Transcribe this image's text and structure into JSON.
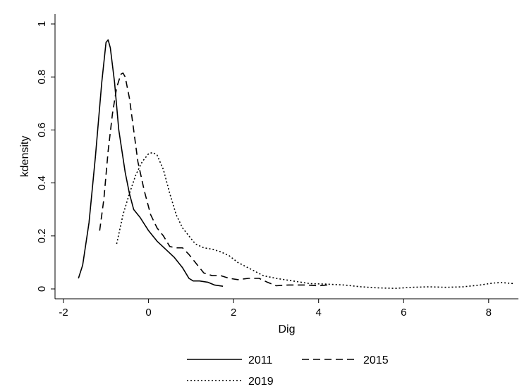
{
  "chart_data": {
    "type": "line",
    "xlabel": "Dig",
    "ylabel": "kdensity",
    "xlim": [
      -2.2,
      8.7
    ],
    "ylim": [
      0,
      1
    ],
    "xticks": [
      -2,
      0,
      2,
      4,
      6,
      8
    ],
    "yticks": [
      0,
      0.2,
      0.4,
      0.6,
      0.8,
      1
    ],
    "xtick_labels": [
      "-2",
      "0",
      "2",
      "4",
      "6",
      "8"
    ],
    "ytick_labels": [
      "0",
      "0.2",
      "0.4",
      "0.6",
      "0.8",
      "1"
    ],
    "legend_position": "bottom",
    "grid": false,
    "series": [
      {
        "name": "2011",
        "dash": "solid",
        "points": [
          [
            -1.65,
            0.04
          ],
          [
            -1.55,
            0.09
          ],
          [
            -1.4,
            0.25
          ],
          [
            -1.25,
            0.5
          ],
          [
            -1.1,
            0.78
          ],
          [
            -1.0,
            0.93
          ],
          [
            -0.95,
            0.94
          ],
          [
            -0.9,
            0.91
          ],
          [
            -0.8,
            0.78
          ],
          [
            -0.7,
            0.6
          ],
          [
            -0.55,
            0.44
          ],
          [
            -0.45,
            0.36
          ],
          [
            -0.35,
            0.3
          ],
          [
            -0.2,
            0.27
          ],
          [
            0.0,
            0.22
          ],
          [
            0.2,
            0.18
          ],
          [
            0.4,
            0.15
          ],
          [
            0.6,
            0.12
          ],
          [
            0.8,
            0.08
          ],
          [
            0.95,
            0.04
          ],
          [
            1.05,
            0.03
          ],
          [
            1.2,
            0.03
          ],
          [
            1.4,
            0.025
          ],
          [
            1.55,
            0.015
          ],
          [
            1.75,
            0.01
          ]
        ]
      },
      {
        "name": "2015",
        "dash": "dashed",
        "points": [
          [
            -1.15,
            0.22
          ],
          [
            -1.05,
            0.34
          ],
          [
            -0.95,
            0.52
          ],
          [
            -0.85,
            0.66
          ],
          [
            -0.75,
            0.76
          ],
          [
            -0.65,
            0.81
          ],
          [
            -0.6,
            0.815
          ],
          [
            -0.55,
            0.8
          ],
          [
            -0.45,
            0.72
          ],
          [
            -0.35,
            0.6
          ],
          [
            -0.25,
            0.48
          ],
          [
            -0.1,
            0.37
          ],
          [
            0.05,
            0.28
          ],
          [
            0.2,
            0.23
          ],
          [
            0.35,
            0.2
          ],
          [
            0.5,
            0.16
          ],
          [
            0.65,
            0.155
          ],
          [
            0.8,
            0.155
          ],
          [
            0.95,
            0.13
          ],
          [
            1.1,
            0.1
          ],
          [
            1.3,
            0.06
          ],
          [
            1.5,
            0.05
          ],
          [
            1.7,
            0.05
          ],
          [
            1.9,
            0.04
          ],
          [
            2.1,
            0.035
          ],
          [
            2.35,
            0.04
          ],
          [
            2.6,
            0.04
          ],
          [
            2.8,
            0.025
          ],
          [
            3.0,
            0.012
          ],
          [
            3.3,
            0.015
          ],
          [
            3.7,
            0.015
          ],
          [
            4.0,
            0.012
          ],
          [
            4.2,
            0.015
          ]
        ]
      },
      {
        "name": "2019",
        "dash": "dotted",
        "points": [
          [
            -0.75,
            0.17
          ],
          [
            -0.6,
            0.28
          ],
          [
            -0.45,
            0.36
          ],
          [
            -0.3,
            0.43
          ],
          [
            -0.15,
            0.48
          ],
          [
            0.0,
            0.51
          ],
          [
            0.1,
            0.515
          ],
          [
            0.2,
            0.505
          ],
          [
            0.35,
            0.45
          ],
          [
            0.5,
            0.36
          ],
          [
            0.65,
            0.28
          ],
          [
            0.8,
            0.23
          ],
          [
            0.95,
            0.2
          ],
          [
            1.1,
            0.17
          ],
          [
            1.3,
            0.155
          ],
          [
            1.5,
            0.15
          ],
          [
            1.7,
            0.14
          ],
          [
            1.9,
            0.125
          ],
          [
            2.1,
            0.1
          ],
          [
            2.4,
            0.075
          ],
          [
            2.7,
            0.05
          ],
          [
            3.0,
            0.04
          ],
          [
            3.4,
            0.03
          ],
          [
            3.8,
            0.02
          ],
          [
            4.2,
            0.018
          ],
          [
            4.6,
            0.015
          ],
          [
            5.0,
            0.008
          ],
          [
            5.4,
            0.004
          ],
          [
            5.8,
            0.002
          ],
          [
            6.2,
            0.006
          ],
          [
            6.6,
            0.008
          ],
          [
            7.0,
            0.006
          ],
          [
            7.4,
            0.008
          ],
          [
            7.8,
            0.015
          ],
          [
            8.1,
            0.022
          ],
          [
            8.3,
            0.024
          ],
          [
            8.6,
            0.02
          ]
        ]
      }
    ]
  }
}
